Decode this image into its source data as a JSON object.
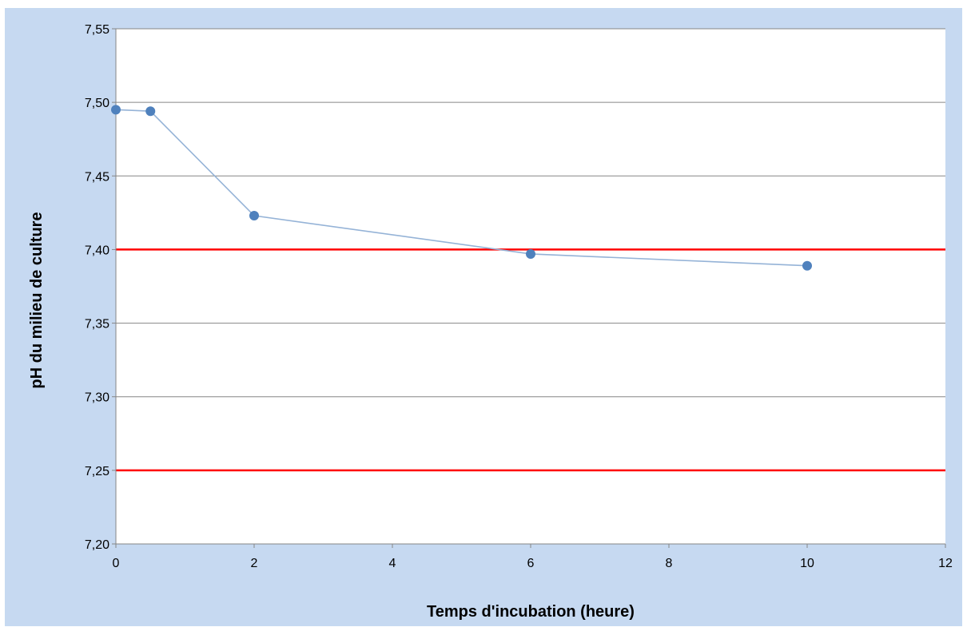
{
  "chart_data": {
    "type": "line",
    "title": "",
    "xlabel": "Temps d'incubation (heure)",
    "ylabel": "pH du milieu de culture",
    "xlim": [
      0,
      12
    ],
    "ylim": [
      7.2,
      7.55
    ],
    "x_ticks": [
      {
        "value": 0,
        "label": "0"
      },
      {
        "value": 2,
        "label": "2"
      },
      {
        "value": 4,
        "label": "4"
      },
      {
        "value": 6,
        "label": "6"
      },
      {
        "value": 8,
        "label": "8"
      },
      {
        "value": 10,
        "label": "10"
      },
      {
        "value": 12,
        "label": "12"
      }
    ],
    "y_ticks": [
      {
        "value": 7.2,
        "label": "7,20"
      },
      {
        "value": 7.25,
        "label": "7,25"
      },
      {
        "value": 7.3,
        "label": "7,30"
      },
      {
        "value": 7.35,
        "label": "7,35"
      },
      {
        "value": 7.4,
        "label": "7,40"
      },
      {
        "value": 7.45,
        "label": "7,45"
      },
      {
        "value": 7.5,
        "label": "7,50"
      },
      {
        "value": 7.55,
        "label": "7,55"
      }
    ],
    "grid": true,
    "legend": "none",
    "series": [
      {
        "x": [
          0,
          0.5,
          2,
          6,
          10
        ],
        "y": [
          7.495,
          7.494,
          7.423,
          7.397,
          7.389
        ],
        "color": "#4f81bd",
        "line_color": "#95b3d7"
      }
    ],
    "reference_lines": [
      {
        "axis": "y",
        "value": 7.4,
        "color": "#ff0000"
      },
      {
        "axis": "y",
        "value": 7.25,
        "color": "#ff0000"
      }
    ],
    "background_color": "#c6d9f1",
    "plot_background_color": "#ffffff",
    "grid_color": "#868686"
  }
}
